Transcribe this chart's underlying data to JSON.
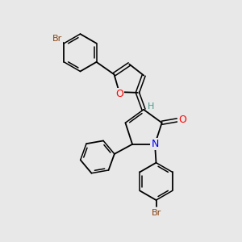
{
  "bg_color": "#e8e8e8",
  "atom_colors": {
    "Br": "#8B4513",
    "O": "#FF0000",
    "N": "#0000FF",
    "C": "#000000",
    "H": "#4a9a8a"
  },
  "bond_color": "#000000"
}
